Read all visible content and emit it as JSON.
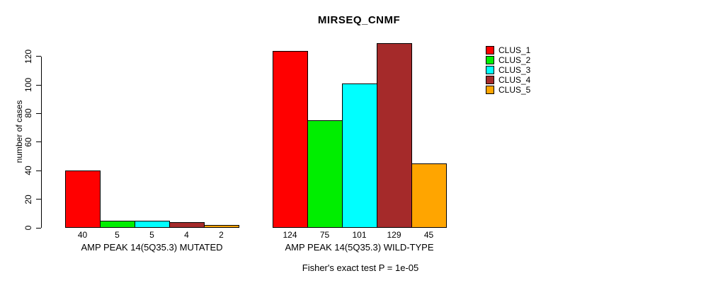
{
  "chart_data": {
    "type": "bar",
    "title": "MIRSEQ_CNMF",
    "ylabel": "number of cases",
    "xlabel": "",
    "ylim": [
      0,
      120
    ],
    "yticks": [
      0,
      20,
      40,
      60,
      80,
      100,
      120
    ],
    "grid": false,
    "legend_position": "right",
    "bar_value_labels": true,
    "annotation": "Fisher's exact test P = 1e-05",
    "categories": [
      "AMP PEAK 14(5Q35.3) MUTATED",
      "AMP PEAK 14(5Q35.3) WILD-TYPE"
    ],
    "series": [
      {
        "name": "CLUS_1",
        "color": "#FF0000",
        "values": [
          40,
          124
        ]
      },
      {
        "name": "CLUS_2",
        "color": "#00EE00",
        "values": [
          5,
          75
        ]
      },
      {
        "name": "CLUS_3",
        "color": "#00FFFF",
        "values": [
          5,
          101
        ]
      },
      {
        "name": "CLUS_4",
        "color": "#A52A2A",
        "values": [
          4,
          129
        ]
      },
      {
        "name": "CLUS_5",
        "color": "#FFA500",
        "values": [
          2,
          45
        ]
      }
    ]
  },
  "colors": {
    "background": "#FFFFFF",
    "axis": "#000000",
    "bar_border": "#000000",
    "text": "#000000"
  }
}
